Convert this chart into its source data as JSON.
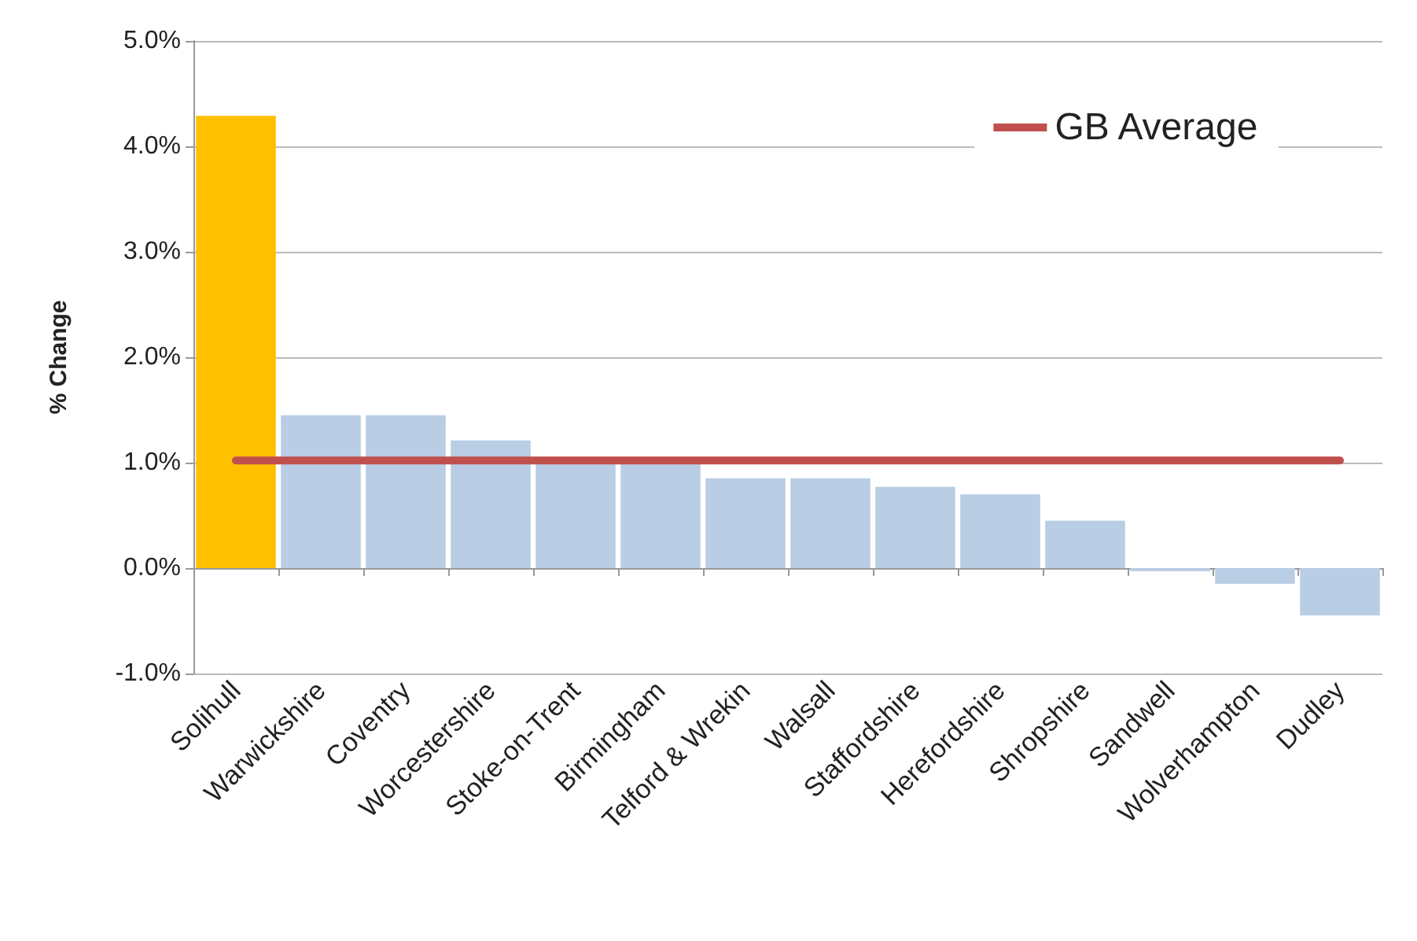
{
  "chart_data": {
    "type": "bar",
    "ylabel": "% Change",
    "categories": [
      "Solihull",
      "Warwickshire",
      "Coventry",
      "Worcestershire",
      "Stoke-on-Trent",
      "Birmingham",
      "Telford & Wrekin",
      "Walsall",
      "Staffordshire",
      "Herefordshire",
      "Shropshire",
      "Sandwell",
      "Wolverhampton",
      "Dudley"
    ],
    "series": [
      {
        "colors": [
          "#ffc000",
          "#b9cde5",
          "#b9cde5",
          "#b9cde5",
          "#b9cde5",
          "#b9cde5",
          "#b9cde5",
          "#b9cde5",
          "#b9cde5",
          "#b9cde5",
          "#b9cde5",
          "#b9cde5",
          "#b9cde5",
          "#b9cde5"
        ],
        "values": [
          4.29,
          1.45,
          1.45,
          1.21,
          0.99,
          0.99,
          0.85,
          0.85,
          0.77,
          0.7,
          0.45,
          -0.03,
          -0.15,
          -0.45
        ]
      },
      {
        "type": "line",
        "name": "GB Average",
        "color": "#c0504d",
        "marker": "none",
        "values": [
          1.02,
          1.02,
          1.02,
          1.02,
          1.02,
          1.02,
          1.02,
          1.02,
          1.02,
          1.02,
          1.02,
          1.02,
          1.02,
          1.02
        ]
      }
    ],
    "ylim": [
      -1,
      5
    ],
    "yticks": [
      {
        "value": -1,
        "label": "-1.0%"
      },
      {
        "value": 0,
        "label": "0.0%"
      },
      {
        "value": 1,
        "label": "1.0%"
      },
      {
        "value": 2,
        "label": "2.0%"
      },
      {
        "value": 3,
        "label": "3.0%"
      },
      {
        "value": 4,
        "label": "4.0%"
      },
      {
        "value": 5,
        "label": "5.0%"
      }
    ],
    "grid": true,
    "legend": "top right"
  }
}
